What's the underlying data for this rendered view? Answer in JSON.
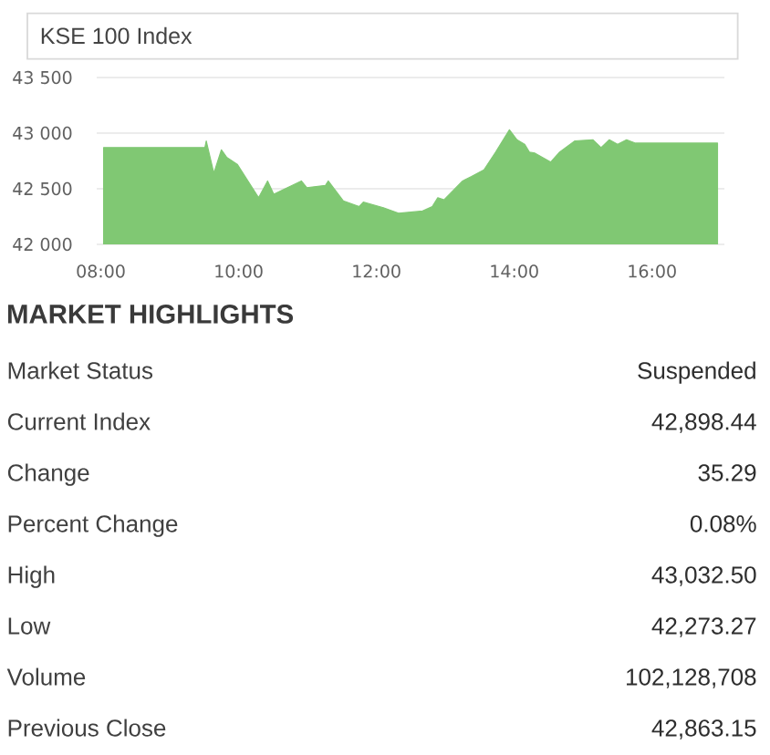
{
  "chart_data": [
    {
      "type": "area",
      "title": "KSE 100 Index",
      "x": [
        8.04,
        9.51,
        9.53,
        9.64,
        9.75,
        9.83,
        9.98,
        10.29,
        10.42,
        10.51,
        10.64,
        10.91,
        10.99,
        11.26,
        11.3,
        11.52,
        11.75,
        11.81,
        12.1,
        12.32,
        12.67,
        12.81,
        12.89,
        12.98,
        13.25,
        13.38,
        13.56,
        13.73,
        13.93,
        14.04,
        14.15,
        14.22,
        14.3,
        14.53,
        14.66,
        14.88,
        15.14,
        15.26,
        15.38,
        15.5,
        15.63,
        15.76,
        16.95
      ],
      "values": [
        42870,
        42870,
        42930,
        42640,
        42850,
        42780,
        42720,
        42420,
        42570,
        42450,
        42490,
        42570,
        42510,
        42530,
        42570,
        42390,
        42340,
        42380,
        42330,
        42280,
        42300,
        42340,
        42420,
        42400,
        42570,
        42610,
        42670,
        42830,
        43030,
        42940,
        42900,
        42830,
        42820,
        42740,
        42830,
        42930,
        42940,
        42870,
        42940,
        42900,
        42940,
        42910,
        42910
      ],
      "color": "#80c873",
      "xlim": [
        7.94,
        17.05
      ],
      "ylim": [
        42000,
        43500
      ],
      "xticks": [
        {
          "value": 8,
          "label": "08:00"
        },
        {
          "value": 10,
          "label": "10:00"
        },
        {
          "value": 12,
          "label": "12:00"
        },
        {
          "value": 14,
          "label": "14:00"
        },
        {
          "value": 16,
          "label": "16:00"
        }
      ],
      "yticks": [
        {
          "value": 42000,
          "label": "42 000"
        },
        {
          "value": 42500,
          "label": "42 500"
        },
        {
          "value": 43000,
          "label": "43 000"
        },
        {
          "value": 43500,
          "label": "43 500"
        }
      ],
      "grid": "y"
    },
    {
      "type": "other",
      "title": "MARKET HIGHLIGHTS",
      "annotations": [
        "Market Status",
        "Suspended",
        "Current Index",
        "42,898.44",
        "Change",
        "35.29",
        "Percent Change",
        "0.08%",
        "High",
        "43,032.50",
        "Low",
        "42,273.27",
        "Volume",
        "102,128,708",
        "Previous Close",
        "42,863.15"
      ]
    }
  ]
}
